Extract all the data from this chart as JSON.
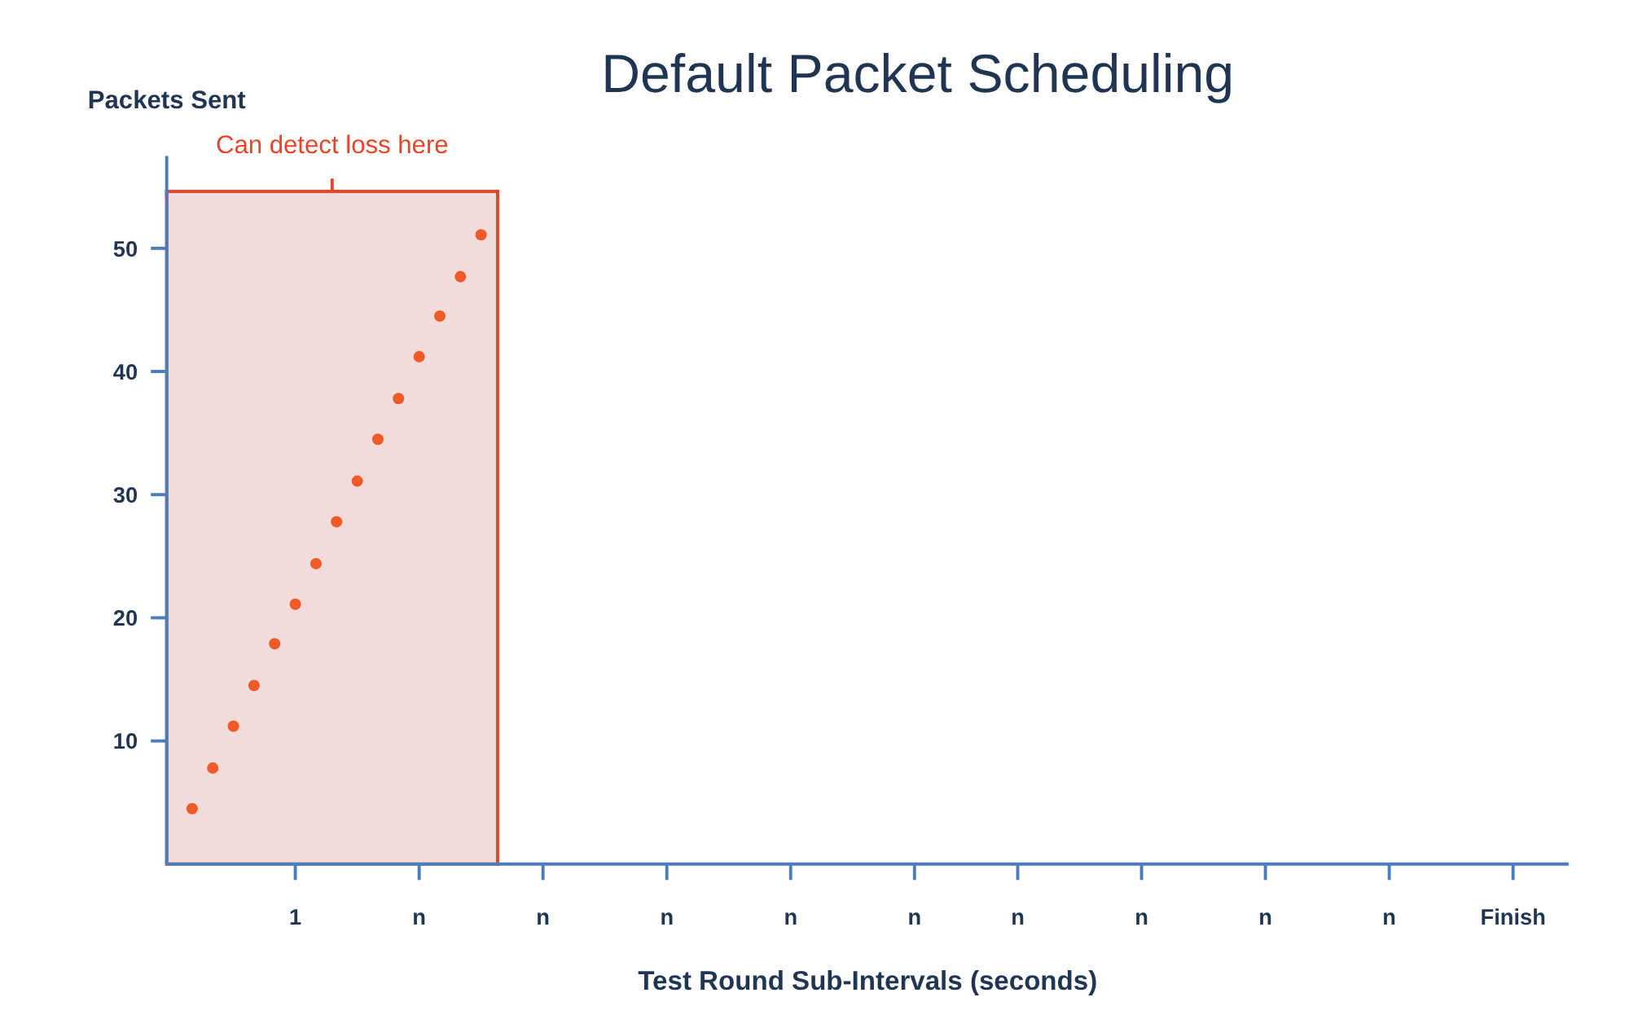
{
  "chart_data": {
    "type": "scatter",
    "title": "Default Packet Scheduling",
    "xlabel": "Test Round Sub-Intervals (seconds)",
    "ylabel": "Packets Sent",
    "categories": [
      null,
      null,
      null,
      null,
      null,
      "1",
      null,
      null,
      null,
      null,
      null,
      "n",
      null,
      null,
      null,
      null,
      null,
      "n",
      null,
      null,
      null,
      null,
      null,
      "n",
      null,
      null,
      null,
      null,
      null,
      "n",
      null,
      null,
      null,
      null,
      null,
      "n",
      null,
      null,
      null,
      null,
      "n",
      null,
      null,
      null,
      null,
      null,
      "n",
      null,
      null,
      null,
      null,
      null,
      "n",
      null,
      null,
      null,
      null,
      null,
      "n",
      null,
      null,
      null,
      null,
      null,
      "Finish",
      null
    ],
    "series": [
      {
        "color": "#f05a28",
        "values": [
          4.5,
          7.8,
          11.2,
          14.5,
          17.9,
          21.1,
          24.4,
          27.8,
          31.1,
          34.5,
          37.8,
          41.2,
          44.5,
          47.7,
          51.1,
          null,
          null,
          null,
          null,
          null,
          null,
          null,
          null,
          null,
          null,
          null,
          null,
          null,
          null,
          null,
          null,
          null,
          null,
          null,
          null,
          null,
          null,
          null,
          null,
          null,
          null,
          null,
          null,
          null,
          null,
          null,
          null,
          null,
          null,
          null,
          null,
          null,
          null,
          null,
          null,
          null,
          null,
          null,
          null,
          null,
          null,
          null,
          null,
          null,
          null,
          null
        ]
      }
    ],
    "marker": "circle",
    "ylim": [
      0,
      57.5
    ],
    "yticks": [
      10,
      20,
      30,
      40,
      50
    ],
    "annotations": [
      "Can detect loss here"
    ],
    "grid": false
  }
}
